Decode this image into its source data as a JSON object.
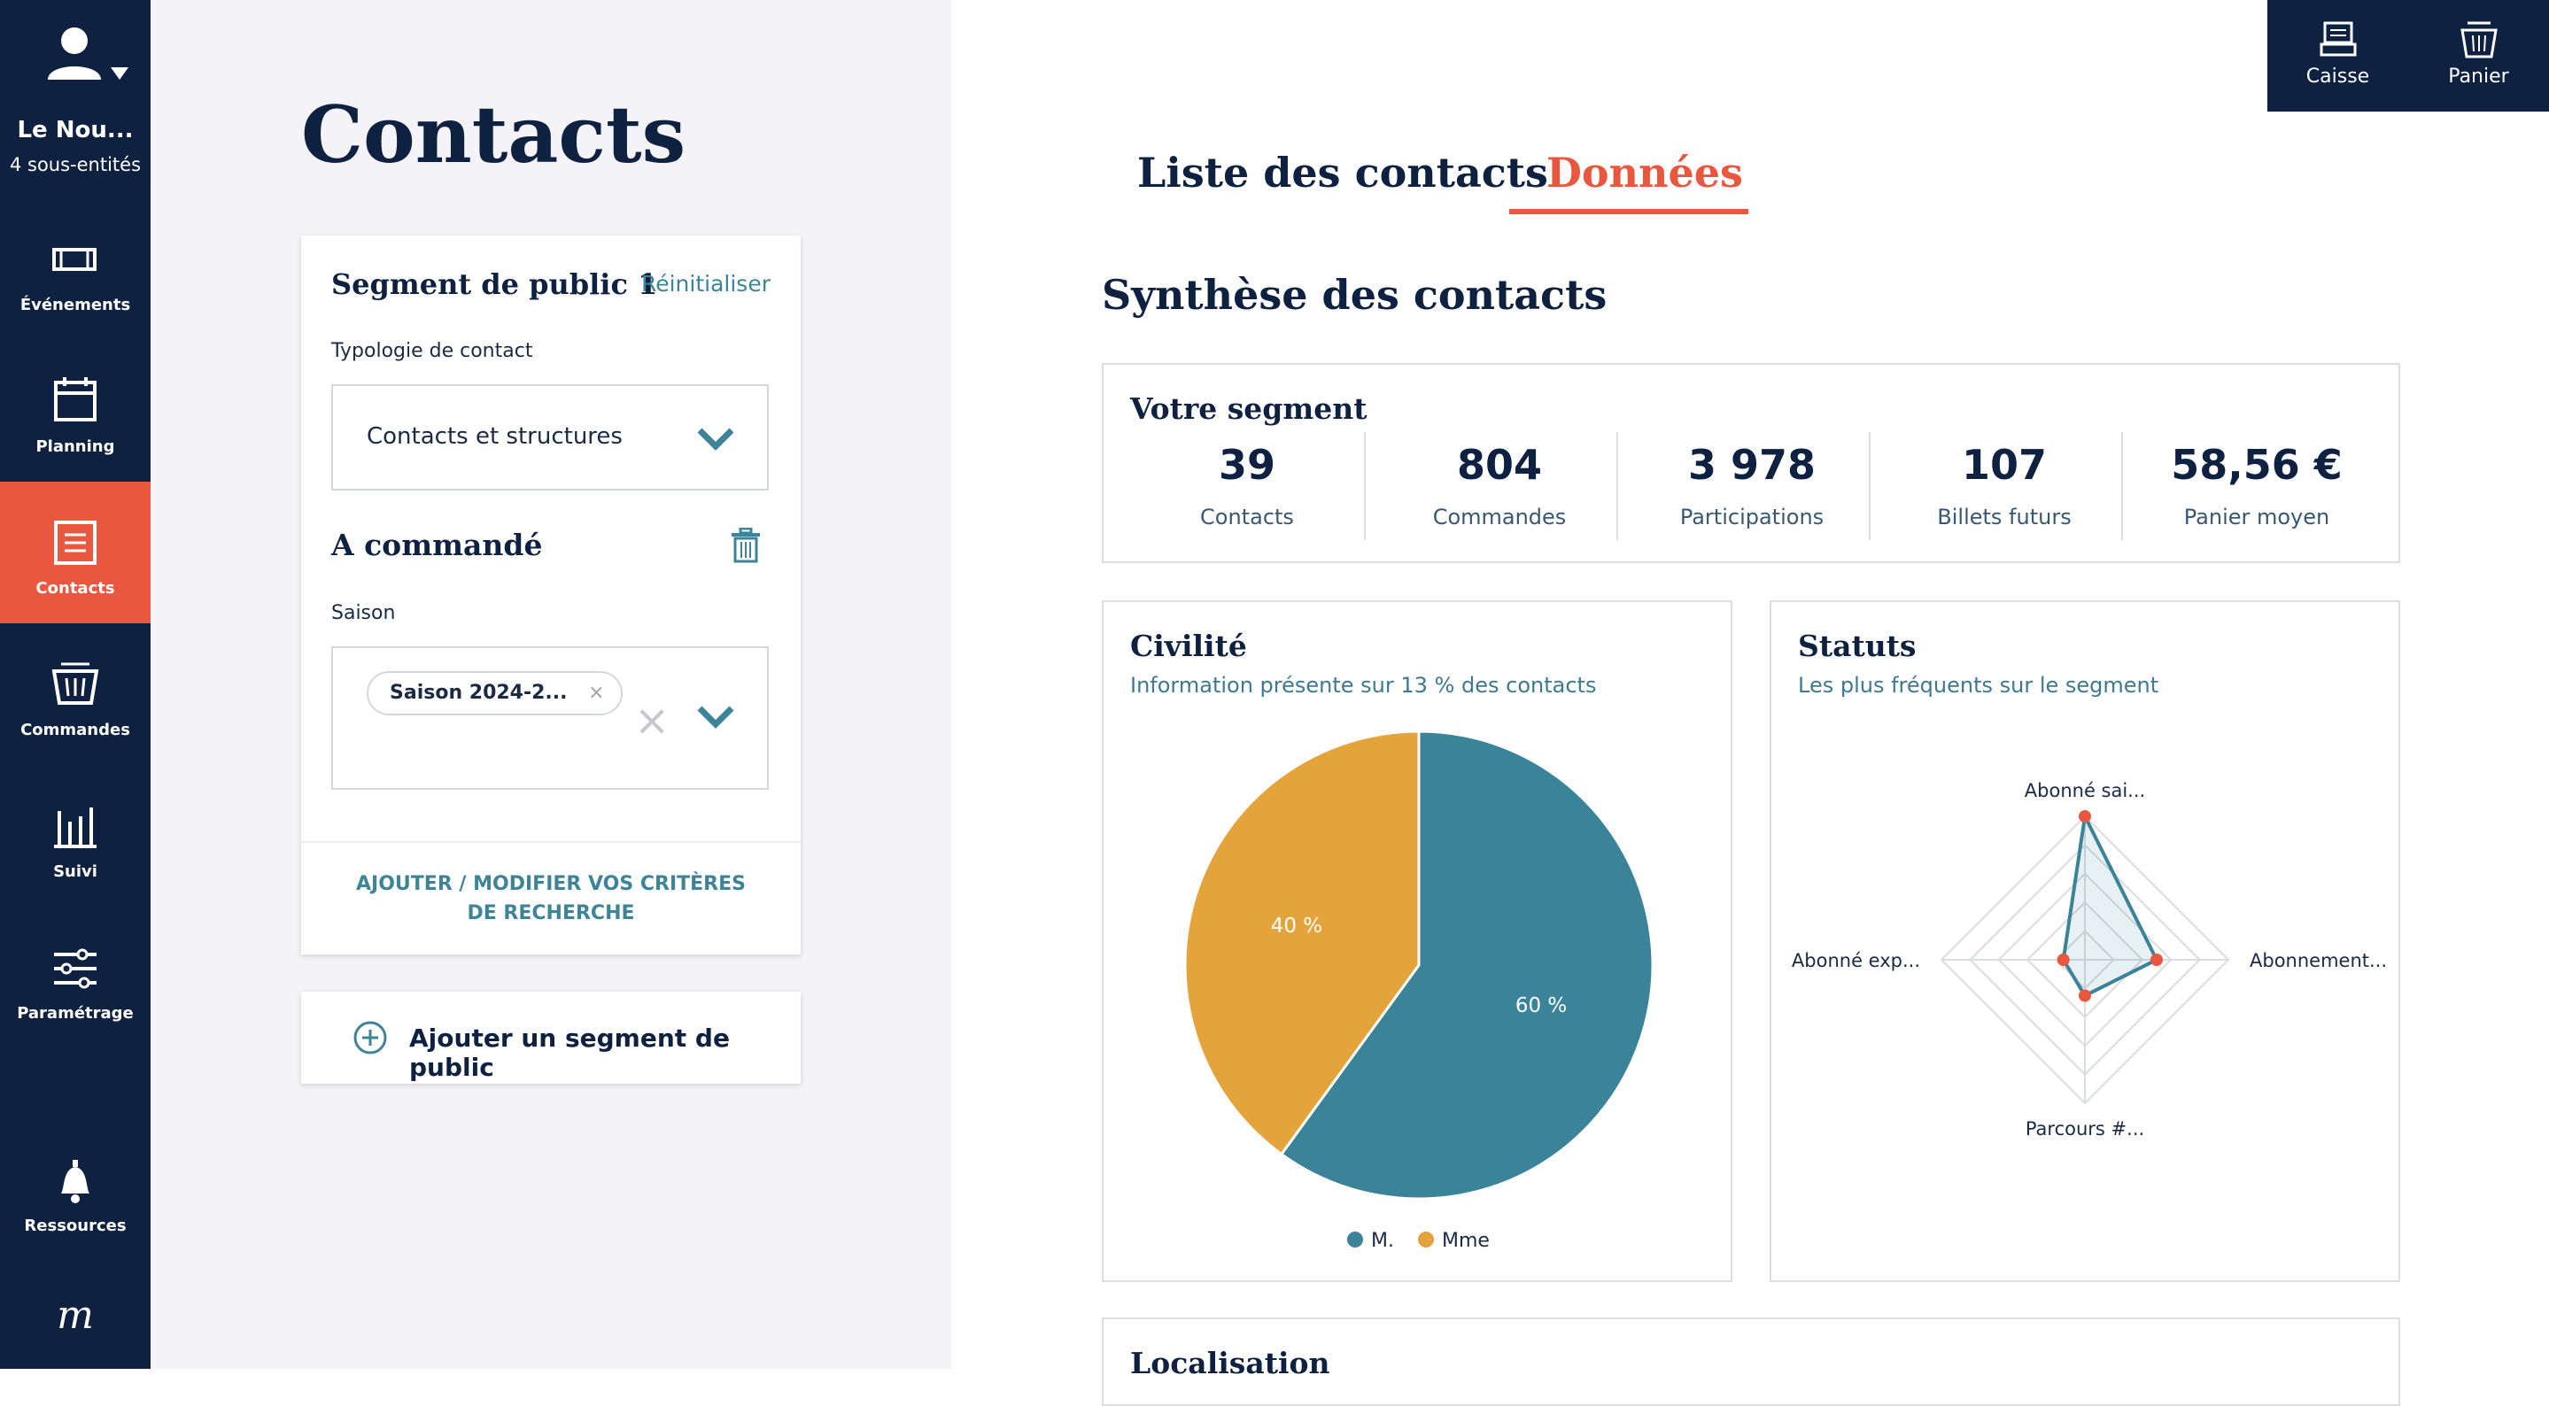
{
  "sidebar": {
    "org_name": "Le Nou...",
    "org_sub": "4 sous-entités",
    "items": [
      {
        "label": "Événements",
        "icon": "ticket-icon"
      },
      {
        "label": "Planning",
        "icon": "calendar-icon"
      },
      {
        "label": "Contacts",
        "icon": "contacts-icon",
        "active": true
      },
      {
        "label": "Commandes",
        "icon": "basket-icon"
      },
      {
        "label": "Suivi",
        "icon": "bar-chart-icon"
      },
      {
        "label": "Paramétrage",
        "icon": "sliders-icon"
      },
      {
        "label": "Ressources",
        "icon": "bell-icon"
      }
    ],
    "logo": "m"
  },
  "page": {
    "title": "Contacts"
  },
  "segment": {
    "title": "Segment de public 1",
    "reset": "Réinitialiser",
    "typology_label": "Typologie de contact",
    "typology_value": "Contacts et structures",
    "ordered_title": "A commandé",
    "season_label": "Saison",
    "season_chip": "Saison 2024-2...",
    "chip_remove": "×",
    "clear": "×",
    "add_criteria": "AJOUTER / MODIFIER VOS CRITÈRES DE RECHERCHE"
  },
  "add_segment": {
    "label": "Ajouter un segment de public"
  },
  "topbar": {
    "cashier": "Caisse",
    "cart": "Panier"
  },
  "tabs": {
    "list": "Liste des contacts",
    "data": "Données"
  },
  "section_title": "Synthèse des contacts",
  "stats": {
    "title": "Votre segment",
    "items": [
      {
        "value": "39",
        "label": "Contacts"
      },
      {
        "value": "804",
        "label": "Commandes"
      },
      {
        "value": "3 978",
        "label": "Participations"
      },
      {
        "value": "107",
        "label": "Billets futurs"
      },
      {
        "value": "58,56 €",
        "label": "Panier moyen"
      }
    ]
  },
  "civility": {
    "title": "Civilité",
    "subtitle": "Information présente sur 13 % des contacts"
  },
  "statuses": {
    "title": "Statuts",
    "subtitle": "Les plus fréquents sur le segment"
  },
  "localisation": {
    "title": "Localisation"
  },
  "colors": {
    "navy": "#0f2140",
    "accent": "#e9573f",
    "teal": "#3b8399",
    "orange": "#e5a33b"
  },
  "chart_data": [
    {
      "type": "pie",
      "title": "Civilité",
      "categories": [
        "M.",
        "Mme"
      ],
      "values": [
        60,
        40
      ],
      "value_labels": [
        "60 %",
        "40 %"
      ],
      "colors": [
        "#3b8399",
        "#e5a33b"
      ],
      "legend": "bottom"
    },
    {
      "type": "radar",
      "title": "Statuts",
      "categories": [
        "Abonné sai...",
        "Abonnement...",
        "Parcours #...",
        "Abonné exp..."
      ],
      "values": [
        100,
        50,
        25,
        15
      ],
      "rmax": 100
    }
  ]
}
